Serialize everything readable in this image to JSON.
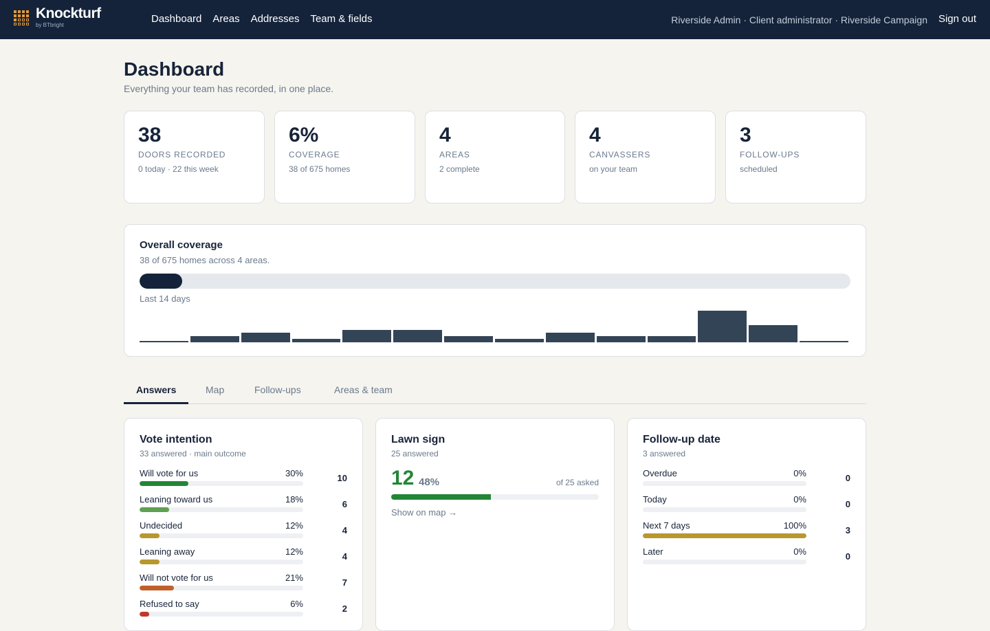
{
  "app": {
    "brand": "Knockturf",
    "byline": "by BTbright"
  },
  "nav": [
    "Dashboard",
    "Areas",
    "Addresses",
    "Team & fields"
  ],
  "account": {
    "label": "Riverside Admin · Client administrator · Riverside Campaign",
    "sign_out": "Sign out"
  },
  "page": {
    "title": "Dashboard",
    "subtitle": "Everything your team has recorded, in one place."
  },
  "stats": [
    {
      "value": "38",
      "label": "Doors recorded",
      "sub": "0 today · 22 this week"
    },
    {
      "value": "6%",
      "label": "Coverage",
      "sub": "38 of 675 homes"
    },
    {
      "value": "4",
      "label": "Areas",
      "sub": "2 complete"
    },
    {
      "value": "4",
      "label": "Canvassers",
      "sub": "on your team"
    },
    {
      "value": "3",
      "label": "Follow-ups",
      "sub": "scheduled"
    }
  ],
  "coverage": {
    "title": "Overall coverage",
    "subtitle": "38 of 675 homes across 4 areas.",
    "progress": 0.06,
    "days_label": "Last 14 days",
    "daily_counts": [
      0.5,
      2,
      3,
      1,
      4,
      4,
      2,
      1,
      3,
      2,
      2,
      10,
      5.5,
      0.5
    ]
  },
  "tabs": [
    "Answers",
    "Map",
    "Follow-ups",
    "Areas & team"
  ],
  "vote": {
    "title": "Vote intention",
    "subtitle": "33 answered · main outcome",
    "rows": [
      {
        "label": "Will vote for us",
        "pct": "30%",
        "count": "10",
        "value": 0.3,
        "color": "#238636"
      },
      {
        "label": "Leaning toward us",
        "pct": "18%",
        "count": "6",
        "value": 0.18,
        "color": "#5fa052"
      },
      {
        "label": "Undecided",
        "pct": "12%",
        "count": "4",
        "value": 0.12,
        "color": "#b8972e"
      },
      {
        "label": "Leaning away",
        "pct": "12%",
        "count": "4",
        "value": 0.12,
        "color": "#b8972e"
      },
      {
        "label": "Will not vote for us",
        "pct": "21%",
        "count": "7",
        "value": 0.21,
        "color": "#c0602a"
      },
      {
        "label": "Refused to say",
        "pct": "6%",
        "count": "2",
        "value": 0.06,
        "color": "#c0392b"
      }
    ]
  },
  "lawn": {
    "title": "Lawn sign",
    "subtitle": "25 answered",
    "big": "12",
    "pct": "48%",
    "value": 0.48,
    "asked": "of 25 asked",
    "show_map": "Show on map →"
  },
  "followup": {
    "title": "Follow-up date",
    "subtitle": "3 answered",
    "rows": [
      {
        "label": "Overdue",
        "pct": "0%",
        "count": "0",
        "value": 0,
        "color": "#b8972e"
      },
      {
        "label": "Today",
        "pct": "0%",
        "count": "0",
        "value": 0,
        "color": "#b8972e"
      },
      {
        "label": "Next 7 days",
        "pct": "100%",
        "count": "3",
        "value": 1.0,
        "color": "#b8972e"
      },
      {
        "label": "Later",
        "pct": "0%",
        "count": "0",
        "value": 0,
        "color": "#b8972e"
      }
    ]
  }
}
